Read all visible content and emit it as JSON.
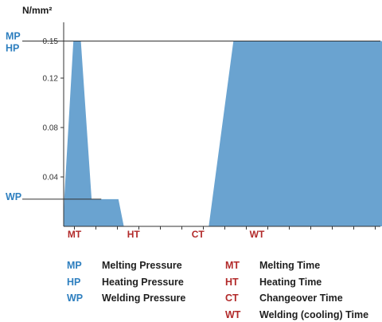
{
  "chart_data": {
    "type": "area",
    "title": "",
    "ylabel": "N/mm²",
    "xlabel": "",
    "ylim": [
      0,
      0.15
    ],
    "yticks": [
      "0.04",
      "0.08",
      "0.12",
      "0.15"
    ],
    "xtick_labels": [
      "MT",
      "HT",
      "CT",
      "WT"
    ],
    "pressure_labels": [
      "MP",
      "HP",
      "WP"
    ],
    "welding_pressure_level": 0.022,
    "x": [
      0,
      0.05,
      0.9,
      1.6,
      2.6,
      3.5,
      5.1,
      5.6,
      13.5,
      15.8,
      18,
      23.6,
      31.2,
      32.0
    ],
    "y": [
      0,
      0.022,
      0.15,
      0.15,
      0.022,
      0.022,
      0.022,
      0,
      0,
      0.15,
      0.15,
      0.15,
      0.15,
      0
    ],
    "fill_color": "#6aa3d0"
  },
  "legend": {
    "left": [
      {
        "code": "MP",
        "label": "Melting Pressure"
      },
      {
        "code": "HP",
        "label": "Heating Pressure"
      },
      {
        "code": "WP",
        "label": "Welding Pressure"
      }
    ],
    "right": [
      {
        "code": "MT",
        "label": "Melting Time"
      },
      {
        "code": "HT",
        "label": "Heating Time"
      },
      {
        "code": "CT",
        "label": "Changeover Time"
      },
      {
        "code": "WT",
        "label": "Welding (cooling) Time"
      }
    ]
  },
  "colors": {
    "pressure": "#2e7fbf",
    "time": "#b22a2a",
    "axis": "#333333"
  }
}
